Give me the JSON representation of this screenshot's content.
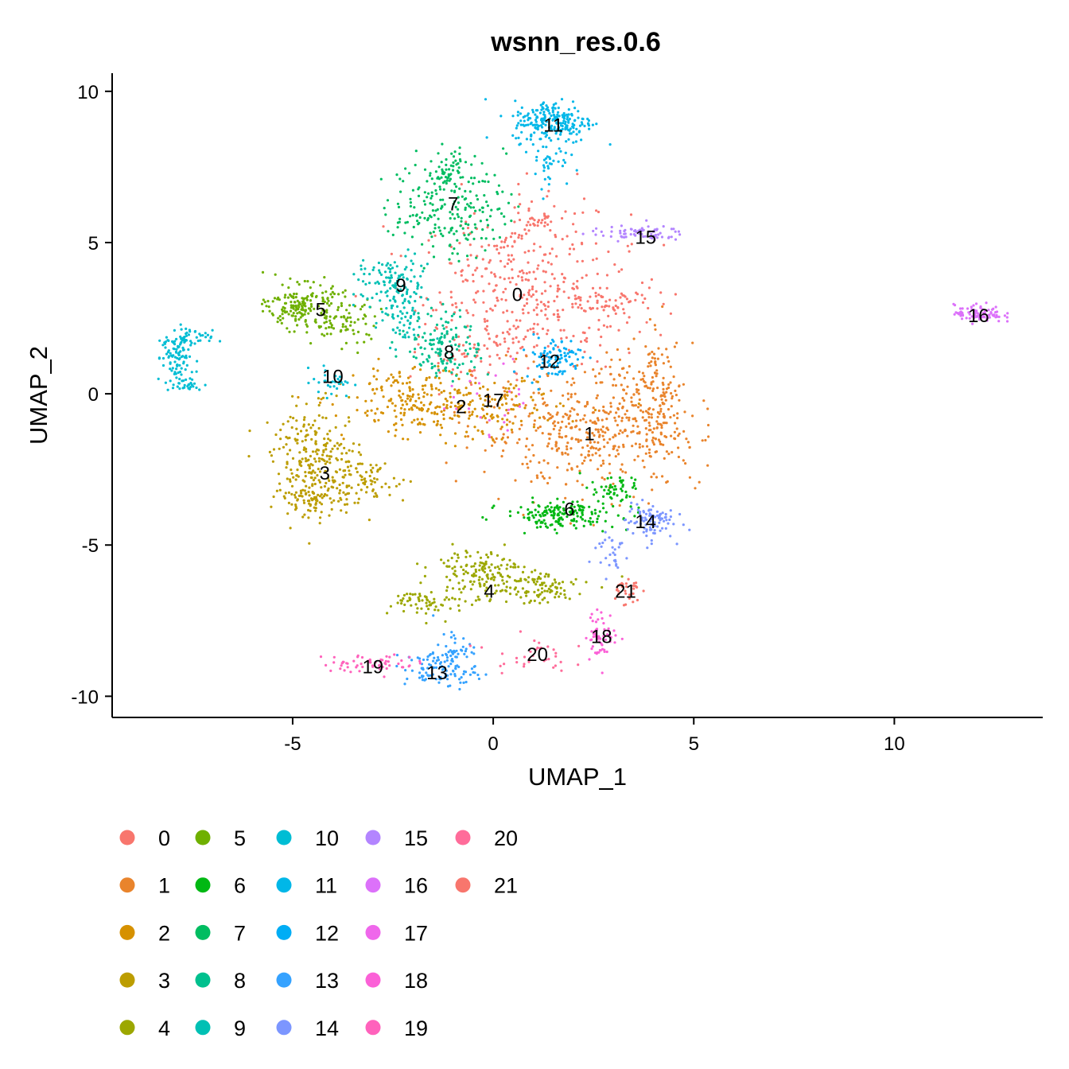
{
  "chart_data": {
    "type": "scatter",
    "title": "wsnn_res.0.6",
    "xlabel": "UMAP_1",
    "ylabel": "UMAP_2",
    "xlim": [
      -9.5,
      13.7
    ],
    "ylim": [
      -10.7,
      10.6
    ],
    "xticks": [
      -5,
      0,
      5,
      10
    ],
    "yticks": [
      10,
      5,
      0,
      -5,
      -10
    ],
    "xtick_labels": [
      "-5",
      "0",
      "5",
      "10"
    ],
    "ytick_labels": [
      "10",
      "5",
      "0",
      "-5",
      "-10"
    ],
    "grid": false,
    "legend_position": "bottom",
    "clusters": [
      {
        "id": "0",
        "color": "#F8766D",
        "center": [
          0.6,
          3.3
        ],
        "label": [
          0.6,
          3.3
        ],
        "blobs": [
          {
            "c": [
              0.8,
              3.4
            ],
            "s": [
              1.3,
              1.3
            ],
            "n": 380
          },
          {
            "c": [
              2.8,
              3.0
            ],
            "s": [
              0.6,
              0.3
            ],
            "n": 60
          },
          {
            "c": [
              1.0,
              5.8
            ],
            "s": [
              0.4,
              0.5
            ],
            "n": 40
          },
          {
            "c": [
              -0.5,
              1.2
            ],
            "s": [
              0.7,
              0.5
            ],
            "n": 50
          }
        ]
      },
      {
        "id": "1",
        "color": "#E9842C",
        "center": [
          2.4,
          -1.3
        ],
        "label": [
          2.4,
          -1.3
        ],
        "blobs": [
          {
            "c": [
              2.4,
              -1.3
            ],
            "s": [
              1.4,
              0.9
            ],
            "n": 420
          },
          {
            "c": [
              4.1,
              -0.4
            ],
            "s": [
              0.35,
              1.2
            ],
            "n": 120
          },
          {
            "c": [
              3.6,
              0.5
            ],
            "s": [
              0.5,
              0.5
            ],
            "n": 60
          }
        ]
      },
      {
        "id": "2",
        "color": "#D69100",
        "center": [
          -0.8,
          -0.4
        ],
        "label": [
          -0.8,
          -0.4
        ],
        "blobs": [
          {
            "c": [
              -1.0,
              -0.5
            ],
            "s": [
              1.3,
              0.5
            ],
            "n": 260
          },
          {
            "c": [
              -2.4,
              0.2
            ],
            "s": [
              0.6,
              0.4
            ],
            "n": 60
          }
        ]
      },
      {
        "id": "3",
        "color": "#BC9D00",
        "center": [
          -4.2,
          -2.6
        ],
        "label": [
          -4.2,
          -2.6
        ],
        "blobs": [
          {
            "c": [
              -4.4,
              -2.3
            ],
            "s": [
              0.55,
              0.9
            ],
            "n": 260
          },
          {
            "c": [
              -3.3,
              -2.9
            ],
            "s": [
              0.6,
              0.4
            ],
            "n": 80
          },
          {
            "c": [
              -4.6,
              -3.5
            ],
            "s": [
              0.3,
              0.25
            ],
            "n": 40
          }
        ]
      },
      {
        "id": "4",
        "color": "#9CA700",
        "center": [
          -0.1,
          -6.5
        ],
        "label": [
          -0.1,
          -6.5
        ],
        "blobs": [
          {
            "c": [
              -0.4,
              -5.8
            ],
            "s": [
              0.55,
              0.35
            ],
            "n": 130
          },
          {
            "c": [
              0.9,
              -6.4
            ],
            "s": [
              0.7,
              0.3
            ],
            "n": 110
          },
          {
            "c": [
              -1.5,
              -6.9
            ],
            "s": [
              0.5,
              0.25
            ],
            "n": 70
          }
        ]
      },
      {
        "id": "5",
        "color": "#6FB000",
        "center": [
          -4.3,
          2.8
        ],
        "label": [
          -4.3,
          2.8
        ],
        "blobs": [
          {
            "c": [
              -4.8,
              2.9
            ],
            "s": [
              0.4,
              0.35
            ],
            "n": 170
          },
          {
            "c": [
              -3.8,
              2.4
            ],
            "s": [
              0.5,
              0.45
            ],
            "n": 80
          }
        ]
      },
      {
        "id": "6",
        "color": "#00B813",
        "center": [
          1.9,
          -3.8
        ],
        "label": [
          1.9,
          -3.8
        ],
        "blobs": [
          {
            "c": [
              1.7,
              -4.0
            ],
            "s": [
              0.7,
              0.22
            ],
            "n": 170
          },
          {
            "c": [
              3.0,
              -3.2
            ],
            "s": [
              0.4,
              0.25
            ],
            "n": 50
          }
        ]
      },
      {
        "id": "7",
        "color": "#00BD61",
        "center": [
          -1.0,
          6.3
        ],
        "label": [
          -1.0,
          6.3
        ],
        "blobs": [
          {
            "c": [
              -1.1,
              6.2
            ],
            "s": [
              0.7,
              0.8
            ],
            "n": 220
          },
          {
            "c": [
              -1.1,
              7.5
            ],
            "s": [
              0.2,
              0.3
            ],
            "n": 40
          }
        ]
      },
      {
        "id": "8",
        "color": "#00C08E",
        "center": [
          -1.1,
          1.4
        ],
        "label": [
          -1.1,
          1.4
        ],
        "blobs": [
          {
            "c": [
              -1.2,
              1.6
            ],
            "s": [
              0.45,
              0.55
            ],
            "n": 140
          }
        ]
      },
      {
        "id": "9",
        "color": "#00C0B4",
        "center": [
          -2.3,
          3.6
        ],
        "label": [
          -2.3,
          3.6
        ],
        "blobs": [
          {
            "c": [
              -2.5,
              3.7
            ],
            "s": [
              0.45,
              0.45
            ],
            "n": 110
          },
          {
            "c": [
              -2.3,
              2.5
            ],
            "s": [
              0.3,
              0.5
            ],
            "n": 60
          }
        ]
      },
      {
        "id": "10",
        "color": "#00BDD4",
        "center": [
          -4.0,
          0.6
        ],
        "label": [
          -4.0,
          0.6
        ],
        "blobs": [
          {
            "c": [
              -7.9,
              1.2
            ],
            "s": [
              0.18,
              0.45
            ],
            "n": 90
          },
          {
            "c": [
              -7.6,
              1.8
            ],
            "s": [
              0.3,
              0.15
            ],
            "n": 40
          },
          {
            "c": [
              -7.7,
              0.3
            ],
            "s": [
              0.25,
              0.12
            ],
            "n": 30
          },
          {
            "c": [
              -4.0,
              0.4
            ],
            "s": [
              0.25,
              0.25
            ],
            "n": 30
          }
        ]
      },
      {
        "id": "11",
        "color": "#00B7E8",
        "center": [
          1.5,
          8.9
        ],
        "label": [
          1.5,
          8.9
        ],
        "blobs": [
          {
            "c": [
              1.5,
              9.0
            ],
            "s": [
              0.5,
              0.35
            ],
            "n": 220
          },
          {
            "c": [
              1.4,
              7.8
            ],
            "s": [
              0.25,
              0.5
            ],
            "n": 40
          }
        ]
      },
      {
        "id": "12",
        "color": "#00ADF5",
        "center": [
          1.4,
          1.1
        ],
        "label": [
          1.4,
          1.1
        ],
        "blobs": [
          {
            "c": [
              1.5,
              1.2
            ],
            "s": [
              0.35,
              0.35
            ],
            "n": 90
          }
        ]
      },
      {
        "id": "13",
        "color": "#35A2FF",
        "center": [
          -1.4,
          -9.2
        ],
        "label": [
          -1.4,
          -9.2
        ],
        "blobs": [
          {
            "c": [
              -1.3,
              -9.1
            ],
            "s": [
              0.45,
              0.3
            ],
            "n": 110
          },
          {
            "c": [
              -1.0,
              -8.4
            ],
            "s": [
              0.25,
              0.3
            ],
            "n": 30
          }
        ]
      },
      {
        "id": "14",
        "color": "#7C96FF",
        "center": [
          3.8,
          -4.2
        ],
        "label": [
          3.8,
          -4.2
        ],
        "blobs": [
          {
            "c": [
              3.9,
              -4.2
            ],
            "s": [
              0.3,
              0.3
            ],
            "n": 90
          },
          {
            "c": [
              2.9,
              -5.2
            ],
            "s": [
              0.25,
              0.4
            ],
            "n": 30
          }
        ]
      },
      {
        "id": "15",
        "color": "#B385FF",
        "center": [
          3.8,
          5.2
        ],
        "label": [
          3.8,
          5.2
        ],
        "blobs": [
          {
            "c": [
              3.6,
              5.3
            ],
            "s": [
              0.6,
              0.12
            ],
            "n": 70
          }
        ]
      },
      {
        "id": "16",
        "color": "#DC71FA",
        "center": [
          12.1,
          2.6
        ],
        "label": [
          12.1,
          2.6
        ],
        "blobs": [
          {
            "c": [
              12.1,
              2.65
            ],
            "s": [
              0.3,
              0.15
            ],
            "n": 90
          }
        ]
      },
      {
        "id": "17",
        "color": "#EF67EB",
        "center": [
          0.0,
          -0.2
        ],
        "label": [
          0.0,
          -0.2
        ],
        "blobs": [
          {
            "c": [
              0.1,
              -0.2
            ],
            "s": [
              0.6,
              0.6
            ],
            "n": 25
          }
        ]
      },
      {
        "id": "18",
        "color": "#FB61D7",
        "center": [
          2.7,
          -8.0
        ],
        "label": [
          2.7,
          -8.0
        ],
        "blobs": [
          {
            "c": [
              2.7,
              -8.0
            ],
            "s": [
              0.2,
              0.4
            ],
            "n": 60
          }
        ]
      },
      {
        "id": "19",
        "color": "#FF62BC",
        "center": [
          -3.0,
          -9.0
        ],
        "label": [
          -3.0,
          -9.0
        ],
        "blobs": [
          {
            "c": [
              -3.1,
              -8.9
            ],
            "s": [
              0.6,
              0.15
            ],
            "n": 60
          }
        ]
      },
      {
        "id": "20",
        "color": "#FF6C9A",
        "center": [
          1.1,
          -8.6
        ],
        "label": [
          1.1,
          -8.6
        ],
        "blobs": [
          {
            "c": [
              0.9,
              -8.6
            ],
            "s": [
              0.5,
              0.3
            ],
            "n": 35
          }
        ]
      },
      {
        "id": "21",
        "color": "#F8766D",
        "center": [
          3.3,
          -6.5
        ],
        "label": [
          3.3,
          -6.5
        ],
        "blobs": [
          {
            "c": [
              3.3,
              -6.5
            ],
            "s": [
              0.18,
              0.25
            ],
            "n": 30
          }
        ]
      }
    ],
    "legend": {
      "columns": [
        [
          "0",
          "1",
          "2",
          "3",
          "4"
        ],
        [
          "5",
          "6",
          "7",
          "8",
          "9"
        ],
        [
          "10",
          "11",
          "12",
          "13",
          "14"
        ],
        [
          "15",
          "16",
          "17",
          "18",
          "19"
        ],
        [
          "20",
          "21"
        ]
      ]
    }
  }
}
